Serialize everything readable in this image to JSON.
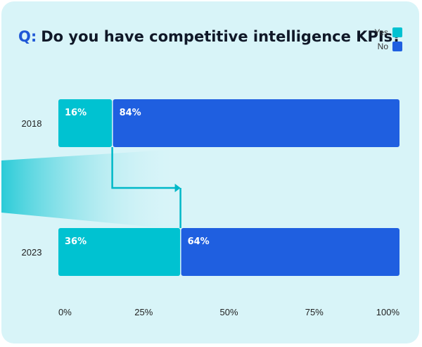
{
  "header": {
    "q_prefix": "Q:",
    "question": "Do you have competitive intelligence KPIs?"
  },
  "legend": [
    {
      "label": "Yes",
      "color": "#00c2d1"
    },
    {
      "label": "No",
      "color": "#1f5fe0"
    }
  ],
  "chart_data": {
    "type": "bar",
    "orientation": "horizontal",
    "stacked": true,
    "title": "Q: Do you have competitive intelligence KPIs?",
    "categories": [
      "2018",
      "2023"
    ],
    "series": [
      {
        "name": "Yes",
        "values": [
          16,
          36
        ],
        "labels": [
          "16%",
          "36%"
        ],
        "color": "#00c2d1"
      },
      {
        "name": "No",
        "values": [
          84,
          64
        ],
        "labels": [
          "84%",
          "64%"
        ],
        "color": "#1f5fe0"
      }
    ],
    "x_ticks": [
      "0%",
      "25%",
      "50%",
      "75%",
      "100%"
    ],
    "xlim": [
      0,
      100
    ],
    "legend_position": "top-right",
    "grid": false
  }
}
